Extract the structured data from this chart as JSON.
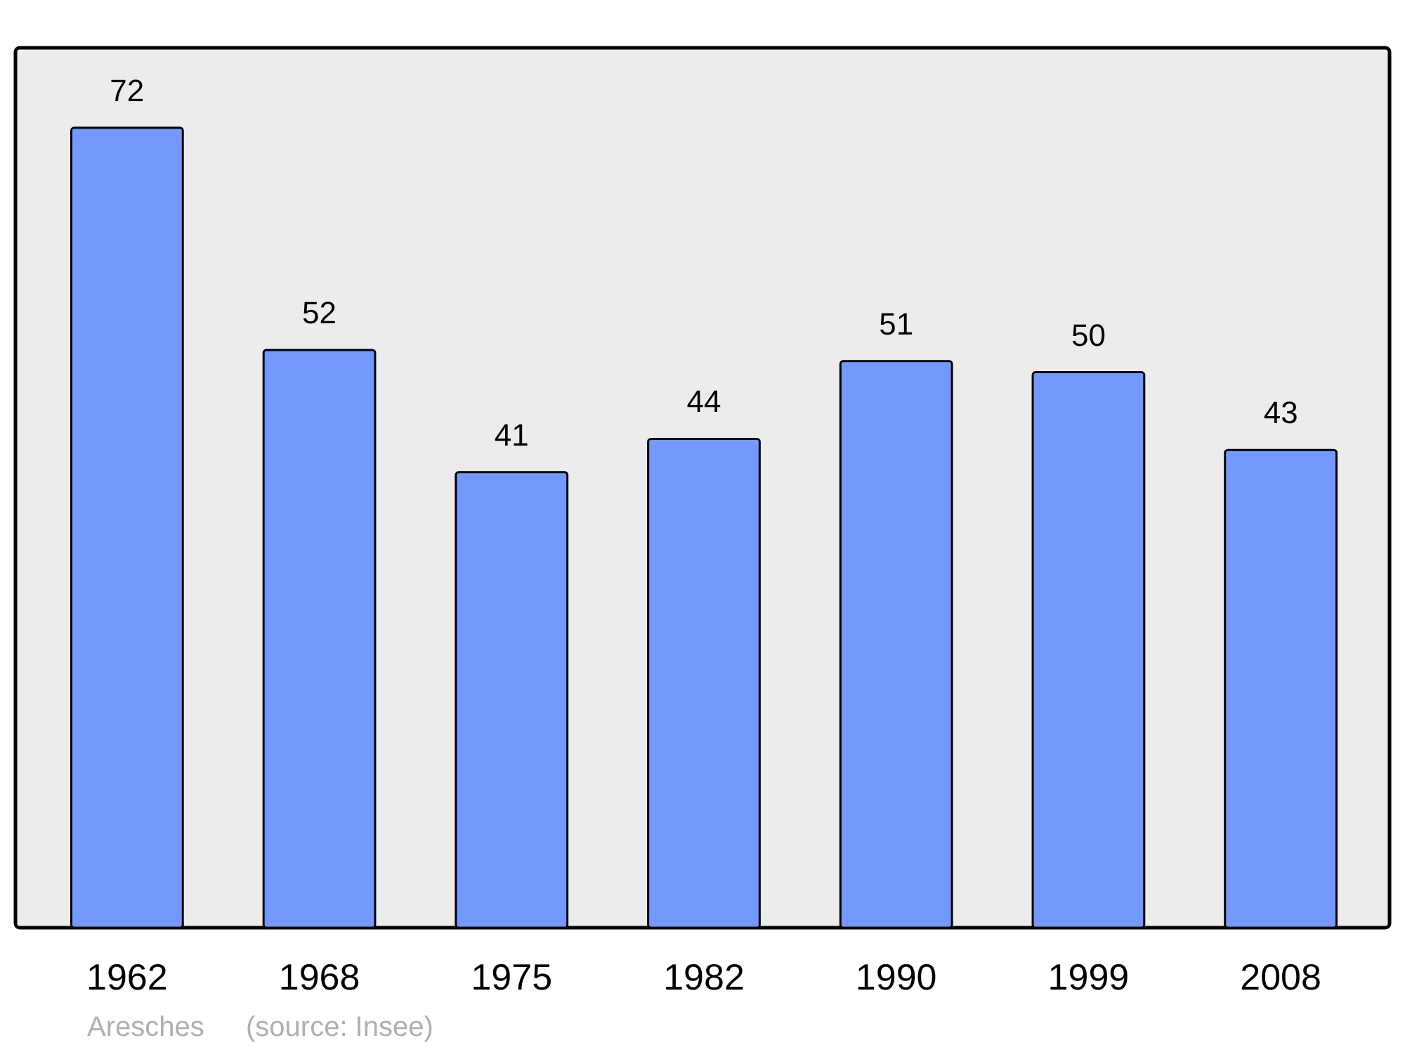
{
  "chart_data": {
    "type": "bar",
    "categories": [
      "1962",
      "1968",
      "1975",
      "1982",
      "1990",
      "1999",
      "2008"
    ],
    "values": [
      72,
      52,
      41,
      44,
      51,
      50,
      43
    ],
    "color": "#7399ff",
    "data_labels": true,
    "annotations": [
      "Aresches",
      "(source: Insee)"
    ]
  }
}
